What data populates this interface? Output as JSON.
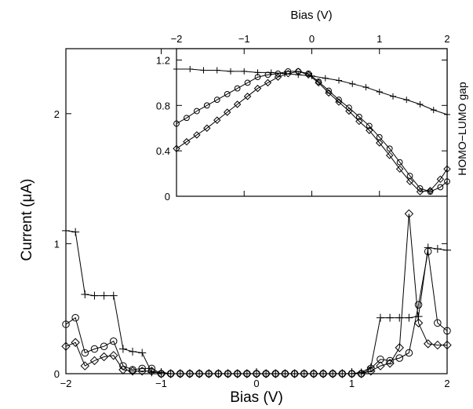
{
  "chart_data": [
    {
      "type": "line",
      "title": "",
      "xlabel": "Bias (V)",
      "ylabel": "Current (μA)",
      "xlim": [
        -2,
        2
      ],
      "ylim": [
        0,
        2.5
      ],
      "xticks": [
        -2,
        -1,
        0,
        1,
        2
      ],
      "xtick_labels": [
        "−2",
        "−1",
        "0",
        "1",
        "2"
      ],
      "yticks": [
        0,
        1,
        2
      ],
      "ytick_labels": [
        "0",
        "1",
        "2"
      ],
      "grid": false,
      "series": [
        {
          "marker": "plus",
          "x": [
            -2,
            -1.9,
            -1.8,
            -1.7,
            -1.6,
            -1.5,
            -1.4,
            -1.3,
            -1.2,
            -1.1,
            -1.0,
            -0.9,
            -0.8,
            -0.7,
            -0.6,
            -0.5,
            -0.4,
            -0.3,
            -0.2,
            -0.1,
            0,
            0.1,
            0.2,
            0.3,
            0.4,
            0.5,
            0.6,
            0.7,
            0.8,
            0.9,
            1.0,
            1.1,
            1.2,
            1.3,
            1.4,
            1.5,
            1.6,
            1.7,
            1.8,
            1.9,
            2.0
          ],
          "y": [
            1.1,
            1.09,
            0.61,
            0.6,
            0.6,
            0.6,
            0.19,
            0.17,
            0.16,
            0.01,
            0.01,
            0.0,
            0.0,
            0.0,
            0.0,
            0.0,
            0.0,
            0.0,
            0.0,
            0.0,
            0.0,
            0.0,
            0.0,
            0.0,
            0.0,
            0.0,
            0.0,
            0.0,
            0.0,
            0.0,
            0.0,
            0.01,
            0.05,
            0.43,
            0.43,
            0.43,
            0.43,
            0.44,
            0.97,
            0.96,
            0.95
          ]
        },
        {
          "marker": "circle",
          "x": [
            -2,
            -1.9,
            -1.8,
            -1.7,
            -1.6,
            -1.5,
            -1.4,
            -1.3,
            -1.2,
            -1.1,
            -1.0,
            -0.9,
            -0.8,
            -0.7,
            -0.6,
            -0.5,
            -0.4,
            -0.3,
            -0.2,
            -0.1,
            0,
            0.1,
            0.2,
            0.3,
            0.4,
            0.5,
            0.6,
            0.7,
            0.8,
            0.9,
            1.0,
            1.1,
            1.2,
            1.3,
            1.4,
            1.5,
            1.6,
            1.7,
            1.8,
            1.9,
            2.0
          ],
          "y": [
            0.38,
            0.43,
            0.16,
            0.19,
            0.21,
            0.25,
            0.06,
            0.03,
            0.04,
            0.04,
            0.0,
            0.0,
            0.0,
            0.0,
            0.0,
            0.0,
            0.0,
            0.0,
            0.0,
            0.0,
            0.0,
            0.0,
            0.0,
            0.0,
            0.0,
            0.0,
            0.0,
            0.0,
            0.0,
            0.0,
            0.0,
            0.0,
            0.04,
            0.11,
            0.1,
            0.12,
            0.16,
            0.53,
            0.94,
            0.39,
            0.33
          ]
        },
        {
          "marker": "diamond",
          "x": [
            -2,
            -1.9,
            -1.8,
            -1.7,
            -1.6,
            -1.5,
            -1.4,
            -1.3,
            -1.2,
            -1.1,
            -1.0,
            -0.9,
            -0.8,
            -0.7,
            -0.6,
            -0.5,
            -0.4,
            -0.3,
            -0.2,
            -0.1,
            0,
            0.1,
            0.2,
            0.3,
            0.4,
            0.5,
            0.6,
            0.7,
            0.8,
            0.9,
            1.0,
            1.1,
            1.2,
            1.3,
            1.4,
            1.5,
            1.6,
            1.7,
            1.8,
            1.9,
            2.0
          ],
          "y": [
            0.21,
            0.24,
            0.06,
            0.1,
            0.13,
            0.14,
            0.03,
            0.02,
            0.02,
            0.02,
            0.0,
            0.0,
            0.0,
            0.0,
            0.0,
            0.0,
            0.0,
            0.0,
            0.0,
            0.0,
            0.0,
            0.0,
            0.0,
            0.0,
            0.0,
            0.0,
            0.0,
            0.0,
            0.0,
            0.0,
            0.0,
            0.0,
            0.02,
            0.06,
            0.08,
            0.2,
            1.23,
            0.39,
            0.23,
            0.22,
            0.22
          ]
        }
      ]
    },
    {
      "type": "line",
      "title": "",
      "xlabel": "Bias (V)",
      "xlabel_position": "top",
      "ylabel": "HOMO−LUMO gap",
      "ylabel_position": "right",
      "xlim": [
        -2,
        2
      ],
      "ylim": [
        0,
        1.3
      ],
      "xticks": [
        -2,
        -1,
        0,
        1,
        2
      ],
      "xtick_labels": [
        "−2",
        "−1",
        "0",
        "1",
        "2"
      ],
      "yticks": [
        0,
        0.4,
        0.8,
        1.2
      ],
      "ytick_labels": [
        "0",
        "0.4",
        "0.8",
        "1.2"
      ],
      "grid": false,
      "series": [
        {
          "marker": "plus",
          "x": [
            -2,
            -1.8,
            -1.6,
            -1.4,
            -1.2,
            -1.0,
            -0.8,
            -0.6,
            -0.4,
            -0.2,
            0,
            0.2,
            0.4,
            0.6,
            0.8,
            1.0,
            1.2,
            1.4,
            1.6,
            1.8,
            2.0
          ],
          "y": [
            1.12,
            1.12,
            1.11,
            1.11,
            1.1,
            1.1,
            1.09,
            1.09,
            1.08,
            1.07,
            1.06,
            1.04,
            1.02,
            0.99,
            0.96,
            0.92,
            0.88,
            0.85,
            0.81,
            0.76,
            0.72
          ]
        },
        {
          "marker": "circle",
          "x": [
            -2,
            -1.85,
            -1.7,
            -1.55,
            -1.4,
            -1.25,
            -1.1,
            -0.95,
            -0.8,
            -0.65,
            -0.5,
            -0.35,
            -0.2,
            -0.05,
            0.1,
            0.25,
            0.4,
            0.55,
            0.7,
            0.85,
            1.0,
            1.15,
            1.3,
            1.45,
            1.6,
            1.75,
            1.9,
            2.0
          ],
          "y": [
            0.64,
            0.69,
            0.75,
            0.8,
            0.85,
            0.9,
            0.95,
            1.0,
            1.05,
            1.07,
            1.08,
            1.1,
            1.1,
            1.08,
            1.01,
            0.93,
            0.85,
            0.78,
            0.7,
            0.62,
            0.52,
            0.42,
            0.3,
            0.18,
            0.07,
            0.04,
            0.08,
            0.13
          ]
        },
        {
          "marker": "diamond",
          "x": [
            -2,
            -1.85,
            -1.7,
            -1.55,
            -1.4,
            -1.25,
            -1.1,
            -0.95,
            -0.8,
            -0.65,
            -0.5,
            -0.35,
            -0.2,
            -0.05,
            0.1,
            0.25,
            0.4,
            0.55,
            0.7,
            0.85,
            1.0,
            1.15,
            1.3,
            1.45,
            1.6,
            1.75,
            1.9,
            2.0
          ],
          "y": [
            0.42,
            0.48,
            0.54,
            0.6,
            0.67,
            0.74,
            0.81,
            0.88,
            0.95,
            1.0,
            1.05,
            1.08,
            1.1,
            1.07,
            1.0,
            0.91,
            0.83,
            0.75,
            0.66,
            0.58,
            0.47,
            0.36,
            0.24,
            0.13,
            0.04,
            0.05,
            0.15,
            0.24
          ]
        }
      ]
    }
  ]
}
